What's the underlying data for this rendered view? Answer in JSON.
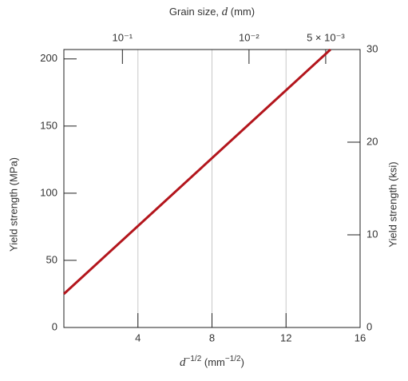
{
  "chart_data": {
    "type": "line",
    "top_axis_label": [
      "Grain size, ",
      "d",
      " (mm)"
    ],
    "x_label": [
      "d",
      "−1/2",
      " (mm",
      "−1/2",
      ")"
    ],
    "y_label": "Yield strength (MPa)",
    "y2_label": "Yield strength (ksi)",
    "x": [
      0,
      14.4
    ],
    "values": [
      25,
      207
    ],
    "color": "#b3151c",
    "xlim": [
      0,
      16
    ],
    "xticks": [
      4,
      8,
      12,
      16
    ],
    "ylim": [
      0,
      207
    ],
    "yticks": [
      0,
      50,
      100,
      150,
      200
    ],
    "y2lim": [
      0,
      30
    ],
    "y2ticks": [
      0,
      10,
      20,
      30
    ],
    "top_ticks": [
      {
        "value": 0.1,
        "label": "10⁻¹"
      },
      {
        "value": 0.01,
        "label": "10⁻²"
      },
      {
        "value": 0.005,
        "label": "5 × 10⁻³"
      }
    ],
    "grid": true
  }
}
